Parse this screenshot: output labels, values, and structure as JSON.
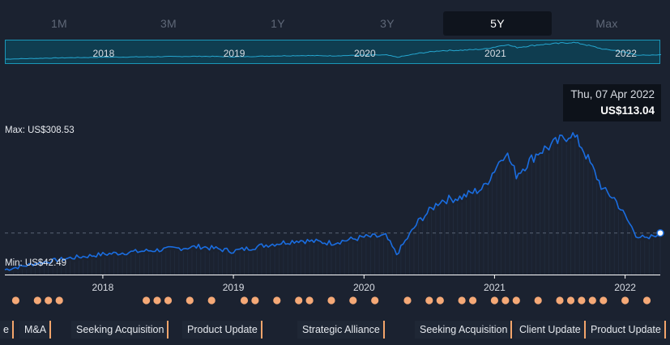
{
  "tabs": [
    {
      "label": "1M",
      "active": false
    },
    {
      "label": "3M",
      "active": false
    },
    {
      "label": "1Y",
      "active": false
    },
    {
      "label": "3Y",
      "active": false
    },
    {
      "label": "5Y",
      "active": true
    },
    {
      "label": "Max",
      "active": false
    }
  ],
  "navigator": {
    "year_labels": [
      "2018",
      "2019",
      "2020",
      "2021",
      "2022"
    ]
  },
  "tooltip": {
    "date": "Thu, 07 Apr 2022",
    "price": "US$113.04"
  },
  "max_label": "Max: US$308.53",
  "min_label": "Min: US$42.49",
  "events": [
    "e",
    "M&A",
    "Seeking Acquisition",
    "Product Update",
    "Strategic Alliance",
    "Seeking Acquisition",
    "Client Update",
    "Product Update"
  ],
  "colors": {
    "background": "#1b2230",
    "line": "#1a6de0",
    "event_marker": "#f5a977",
    "navigator_fill": "#0f3d50",
    "navigator_border": "#1a96b8"
  },
  "chart_data": {
    "type": "line",
    "xlabel": "",
    "ylabel": "",
    "ylim": [
      42.49,
      308.53
    ],
    "x_tick_labels": [
      "2018",
      "2019",
      "2020",
      "2021",
      "2022"
    ],
    "series": [
      {
        "x": [
          "2017-04",
          "2017-07",
          "2017-10",
          "2018-01",
          "2018-04",
          "2018-07",
          "2018-10",
          "2019-01",
          "2019-04",
          "2019-07",
          "2019-10",
          "2020-01",
          "2020-03",
          "2020-04",
          "2020-06",
          "2020-08",
          "2020-10",
          "2020-12",
          "2021-02",
          "2021-03",
          "2021-05",
          "2021-07",
          "2021-08",
          "2021-09",
          "2021-11",
          "2021-12",
          "2022-02",
          "2022-03",
          "2022-04"
        ],
        "values": [
          42.5,
          55,
          65,
          72,
          77,
          82,
          87,
          78,
          90,
          99,
          94,
          105,
          107,
          72,
          135,
          175,
          182,
          200,
          270,
          225,
          268,
          290,
          305,
          280,
          195,
          180,
          110,
          100,
          113.04
        ]
      }
    ],
    "max_value": 308.53,
    "min_value": 42.49,
    "last_value": 113.04,
    "last_date": "2022-04-07"
  },
  "event_markers": [
    "2017-05",
    "2017-07",
    "2017-08",
    "2017-09",
    "2018-05",
    "2018-06",
    "2018-07",
    "2018-09",
    "2018-11",
    "2019-02",
    "2019-03",
    "2019-05",
    "2019-07",
    "2019-08",
    "2019-10",
    "2019-12",
    "2020-02",
    "2020-05",
    "2020-07",
    "2020-08",
    "2020-10",
    "2020-11",
    "2021-01",
    "2021-02",
    "2021-03",
    "2021-05",
    "2021-07",
    "2021-08",
    "2021-09",
    "2021-10",
    "2021-11",
    "2022-01",
    "2022-03"
  ]
}
